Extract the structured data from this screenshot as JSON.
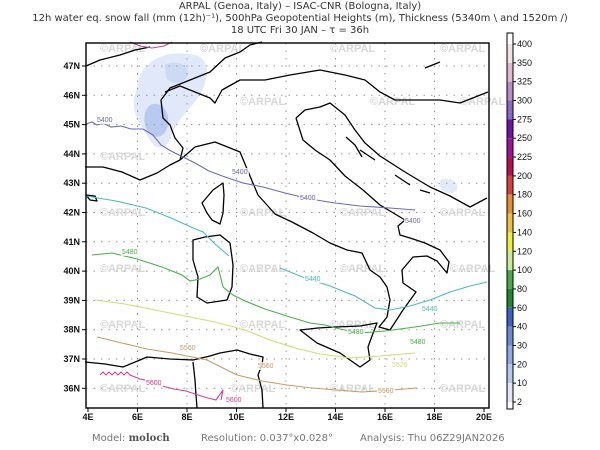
{
  "header": {
    "line1": "ARPAL (Genoa, Italy)  –  ISAC-CNR (Bologna, Italy)",
    "line2": "12h water eq. snow fall (mm (12h)⁻¹), 500hPa Geopotential Heights (m), Thickness (5340m \\ and 1520m /)",
    "line3": "18 UTC Fri 30 JAN  –  τ = 36h"
  },
  "map": {
    "lon_labels": [
      "4E",
      "6E",
      "8E",
      "10E",
      "12E",
      "14E",
      "16E",
      "18E",
      "20E"
    ],
    "lat_labels": [
      "47N",
      "46N",
      "45N",
      "44N",
      "43N",
      "42N",
      "41N",
      "40N",
      "39N",
      "38N",
      "37N",
      "36N"
    ],
    "watermark": "©ARPAL",
    "contours": [
      {
        "value": "5400",
        "color": "#6a6ab8"
      },
      {
        "value": "5440",
        "color": "#4bbcc0"
      },
      {
        "value": "5480",
        "color": "#4caf4c"
      },
      {
        "value": "5520",
        "color": "#d4dd70"
      },
      {
        "value": "5560",
        "color": "#cc9966"
      },
      {
        "value": "5600",
        "color": "#cc4499"
      }
    ]
  },
  "colorbar": {
    "labels": [
      "400",
      "350",
      "325",
      "300",
      "275",
      "250",
      "225",
      "200",
      "180",
      "160",
      "140",
      "120",
      "100",
      "80",
      "60",
      "40",
      "30",
      "20",
      "10",
      "2"
    ],
    "colors": [
      "#efe4e4",
      "#e2b8cc",
      "#b98cc8",
      "#8868cc",
      "#7010a8",
      "#a0109a",
      "#b81050",
      "#d84040",
      "#e89030",
      "#eec040",
      "#eeee40",
      "#c4ee90",
      "#4aa84a",
      "#208830",
      "#4060c8",
      "#6c88dc",
      "#90a8e6",
      "#b4c8f0",
      "#dde6f6"
    ]
  },
  "footer": {
    "model_label": "Model:",
    "model_value": "moloch",
    "resolution": "Resolution: 0.037°x0.028°",
    "analysis": "Analysis: Thu 06Z29JAN2026"
  }
}
